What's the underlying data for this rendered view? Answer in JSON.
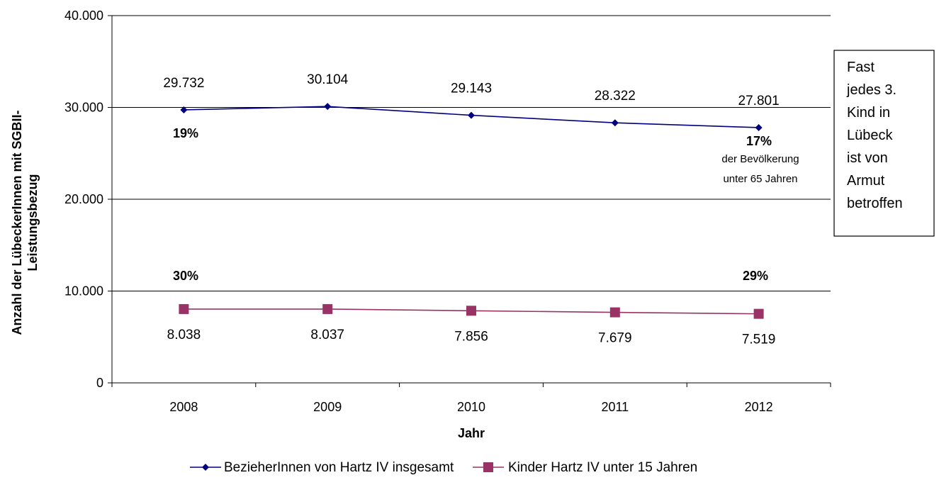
{
  "chart_data": {
    "type": "line",
    "categories": [
      "2008",
      "2009",
      "2010",
      "2011",
      "2012"
    ],
    "series": [
      {
        "name": "BezieherInnen von Hartz IV insgesamt",
        "values": [
          29732,
          30104,
          29143,
          28322,
          27801
        ],
        "labels": [
          "29.732",
          "30.104",
          "29.143",
          "28.322",
          "27.801"
        ],
        "color": "#000080",
        "marker": "diamond"
      },
      {
        "name": "Kinder Hartz IV unter 15 Jahren",
        "values": [
          8038,
          8037,
          7856,
          7679,
          7519
        ],
        "labels": [
          "8.038",
          "8.037",
          "7.856",
          "7.679",
          "7.519"
        ],
        "color": "#993366",
        "marker": "square"
      }
    ],
    "xlabel": "Jahr",
    "ylabel_lines": [
      "Anzahl der LübeckerInnen mit SGBII-",
      "Leistungsbezug"
    ],
    "ylim": [
      0,
      40000
    ],
    "yticks": [
      0,
      10000,
      20000,
      30000,
      40000
    ],
    "ytick_labels": [
      "0",
      "10.000",
      "20.000",
      "30.000",
      "40.000"
    ],
    "grid": true,
    "legend_position": "bottom",
    "annotations": {
      "pct_2008_total": "19%",
      "pct_2012_total": "17%",
      "pct_2012_note_1": "der Bevölkerung",
      "pct_2012_note_2": "unter 65 Jahren",
      "pct_2008_kids": "30%",
      "pct_2012_kids": "29%"
    },
    "text_box_lines": [
      "Fast",
      "jedes 3.",
      "Kind in",
      "Lübeck",
      "ist von",
      "Armut",
      "betroffen"
    ]
  }
}
